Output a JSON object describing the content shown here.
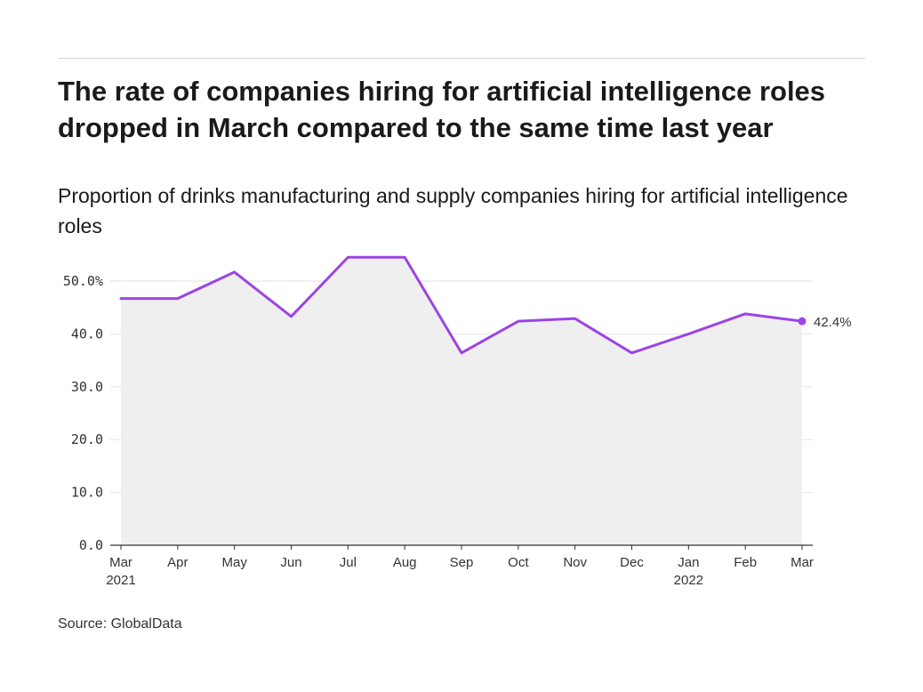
{
  "header": {
    "title": "The rate of companies hiring for artificial intelligence roles dropped in March compared to the same time last year",
    "subtitle": "Proportion of drinks manufacturing and supply companies hiring for artificial intelligence roles"
  },
  "footer": {
    "source": "Source: GlobalData"
  },
  "colors": {
    "line": "#9b45e4",
    "area": "#efeff0",
    "grid": "#e2e2e2",
    "axis": "#333333"
  },
  "chart_data": {
    "type": "area",
    "title": "The rate of companies hiring for artificial intelligence roles dropped in March compared to the same time last year",
    "subtitle": "Proportion of drinks manufacturing and supply companies hiring for artificial intelligence roles",
    "xlabel": "",
    "ylabel": "",
    "categories": [
      "Mar",
      "Apr",
      "May",
      "Jun",
      "Jul",
      "Aug",
      "Sep",
      "Oct",
      "Nov",
      "Dec",
      "Jan",
      "Feb",
      "Mar"
    ],
    "category_years": [
      "2021",
      "",
      "",
      "",
      "",
      "",
      "",
      "",
      "",
      "",
      "2022",
      "",
      ""
    ],
    "series": [
      {
        "values": [
          46.7,
          46.7,
          51.7,
          43.3,
          54.5,
          54.5,
          36.4,
          42.4,
          42.9,
          36.4,
          40.0,
          43.8,
          42.4
        ]
      }
    ],
    "ylim": [
      0,
      55
    ],
    "yticks": [
      0,
      10,
      20,
      30,
      40,
      50
    ],
    "ytick_labels": [
      "0.0",
      "10.0",
      "20.0",
      "30.0",
      "40.0",
      "50.0%"
    ],
    "end_label": "42.4%",
    "grid": true,
    "legend": "none"
  }
}
